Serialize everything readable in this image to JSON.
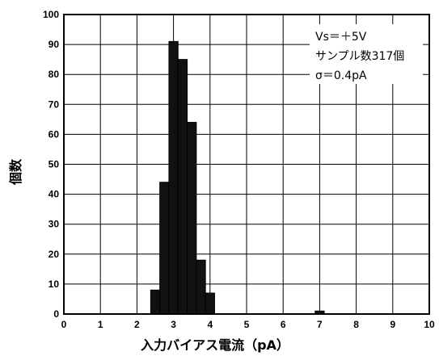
{
  "chart_data": {
    "type": "bar",
    "xlabel": "入力バイアス電流（pA）",
    "ylabel": "個数",
    "xlim": [
      0,
      10
    ],
    "ylim": [
      0,
      100
    ],
    "x_ticks": [
      "0",
      "1",
      "2",
      "3",
      "4",
      "5",
      "6",
      "7",
      "8",
      "9",
      "10"
    ],
    "y_ticks": [
      "0",
      "10",
      "20",
      "30",
      "40",
      "50",
      "60",
      "70",
      "80",
      "90",
      "100"
    ],
    "grid": true,
    "bin_width": 0.25,
    "bins": [
      {
        "x": 2.5,
        "value": 8
      },
      {
        "x": 2.75,
        "value": 44
      },
      {
        "x": 3.0,
        "value": 91
      },
      {
        "x": 3.25,
        "value": 85
      },
      {
        "x": 3.5,
        "value": 64
      },
      {
        "x": 3.75,
        "value": 18
      },
      {
        "x": 4.0,
        "value": 7
      },
      {
        "x": 7.0,
        "value": 1
      }
    ],
    "annotations": [
      "Vs＝＋5V",
      "サンプル数317個",
      "σ＝0.4pA"
    ]
  }
}
